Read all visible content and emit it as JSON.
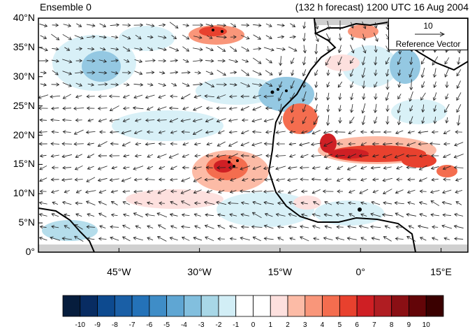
{
  "title_left": "Ensemble 0",
  "title_right": "(132 h forecast) 1200 UTC 16 Aug 2004",
  "lat_ticks": [
    "40°N",
    "35°N",
    "30°N",
    "25°N",
    "20°N",
    "15°N",
    "10°N",
    "5°N",
    "0°"
  ],
  "lon_ticks": [
    "45°W",
    "30°W",
    "15°W",
    "0°",
    "15°E"
  ],
  "reference_vector": {
    "magnitude": "10",
    "label": "Reference Vector"
  },
  "colorbar": {
    "labels": [
      "-10",
      "-9",
      "-8",
      "-7",
      "-6",
      "-5",
      "-4",
      "-3",
      "-2",
      "-1",
      "0",
      "1",
      "2",
      "3",
      "4",
      "5",
      "6",
      "7",
      "8",
      "9",
      "10"
    ],
    "colors": [
      "#061d3d",
      "#082c62",
      "#0d4a8f",
      "#1a5fa6",
      "#2472b8",
      "#3f8dc7",
      "#5fa6d3",
      "#82bfde",
      "#a8d7e7",
      "#d2eef6",
      "#ffffff",
      "#ffffff",
      "#fde0de",
      "#fcbba6",
      "#f9967a",
      "#f46d4f",
      "#e8412e",
      "#cf1f24",
      "#b01d22",
      "#8a0f14",
      "#630508",
      "#3a0000"
    ]
  },
  "colors": {
    "frame": "#000000",
    "land_mask": "#d0d0d0",
    "vector": "#1e1e1e"
  },
  "map": {
    "lon_range": [
      -60,
      20
    ],
    "lat_range": [
      0,
      40
    ]
  }
}
